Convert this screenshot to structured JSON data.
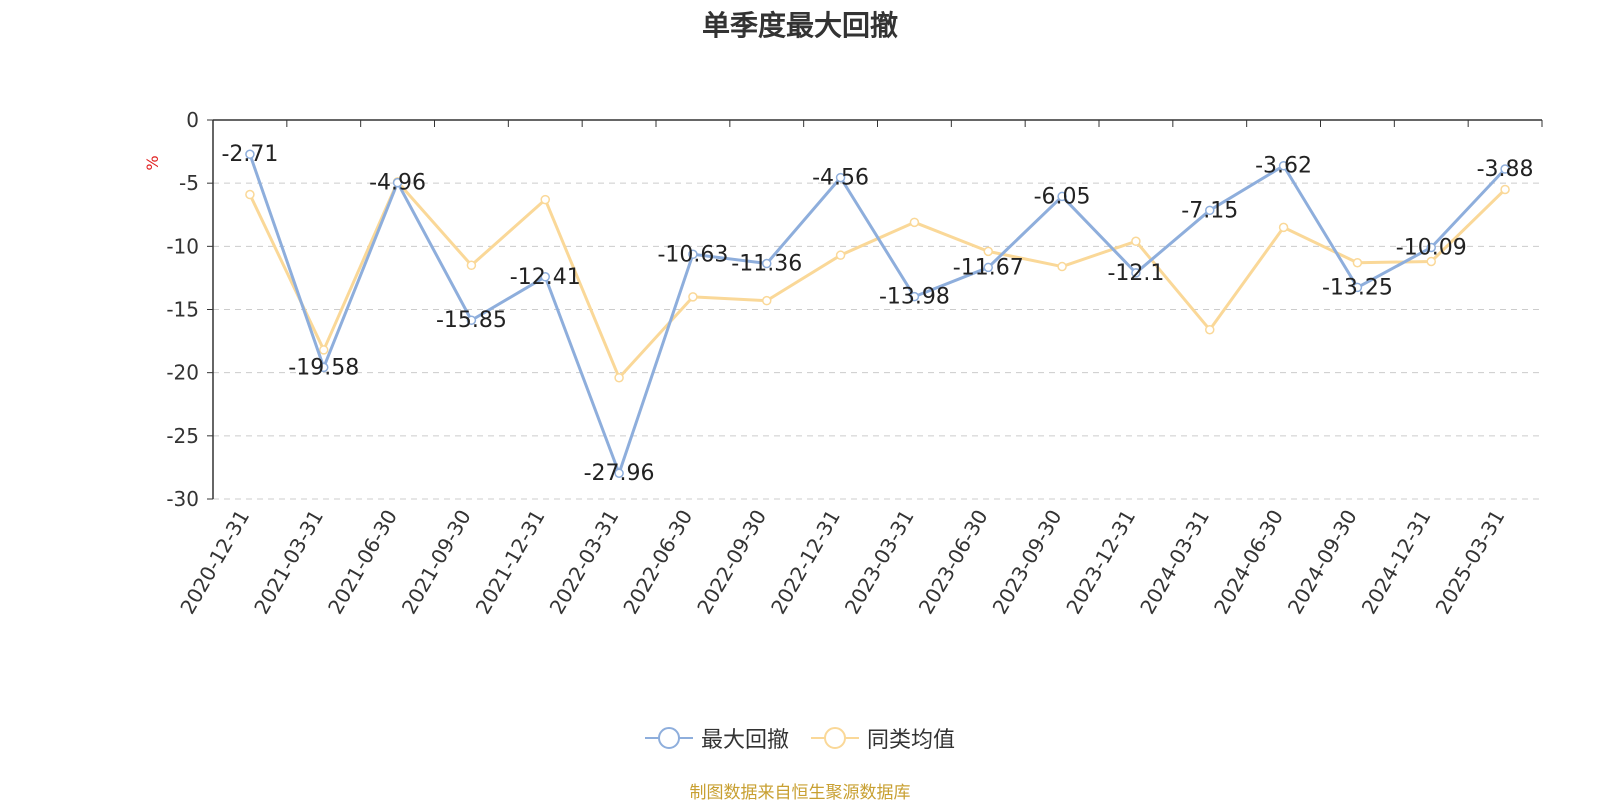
{
  "title": "单季度最大回撤",
  "source_note": "制图数据来自恒生聚源数据库",
  "colors": {
    "series1": "#8eaedc",
    "series2": "#fad898",
    "axis": "#333333",
    "grid": "#cccccc",
    "unit": "#e02020",
    "source": "#c8a032"
  },
  "chart_data": {
    "type": "line",
    "title": "单季度最大回撤",
    "ylabel": "%",
    "ylim": [
      -30,
      0
    ],
    "yticks": [
      0,
      -5,
      -10,
      -15,
      -20,
      -25,
      -30
    ],
    "grid": true,
    "legend_position": "bottom-center",
    "categories": [
      "2020-12-31",
      "2021-03-31",
      "2021-06-30",
      "2021-09-30",
      "2021-12-31",
      "2022-03-31",
      "2022-06-30",
      "2022-09-30",
      "2022-12-31",
      "2023-03-31",
      "2023-06-30",
      "2023-09-30",
      "2023-12-31",
      "2024-03-31",
      "2024-06-30",
      "2024-09-30",
      "2024-12-31",
      "2025-03-31"
    ],
    "series": [
      {
        "name": "最大回撤",
        "values": [
          -2.71,
          -19.58,
          -4.96,
          -15.85,
          -12.41,
          -27.96,
          -10.63,
          -11.36,
          -4.56,
          -13.98,
          -11.67,
          -6.05,
          -12.1,
          -7.15,
          -3.62,
          -13.25,
          -10.09,
          -3.88
        ],
        "labels": [
          "-2.71",
          "-19.58",
          "-4.96",
          "-15.85",
          "-12.41",
          "-27.96",
          "-10.63",
          "-11.36",
          "-4.56",
          "-13.98",
          "-11.67",
          "-6.05",
          "-12.1",
          "-7.15",
          "-3.62",
          "-13.25",
          "-10.09",
          "-3.88"
        ]
      },
      {
        "name": "同类均值",
        "values": [
          -5.9,
          -18.2,
          -4.9,
          -11.5,
          -6.3,
          -20.4,
          -14.0,
          -14.3,
          -10.7,
          -8.1,
          -10.4,
          -11.6,
          -9.6,
          -16.6,
          -8.5,
          -11.3,
          -11.2,
          -5.5
        ]
      }
    ]
  }
}
